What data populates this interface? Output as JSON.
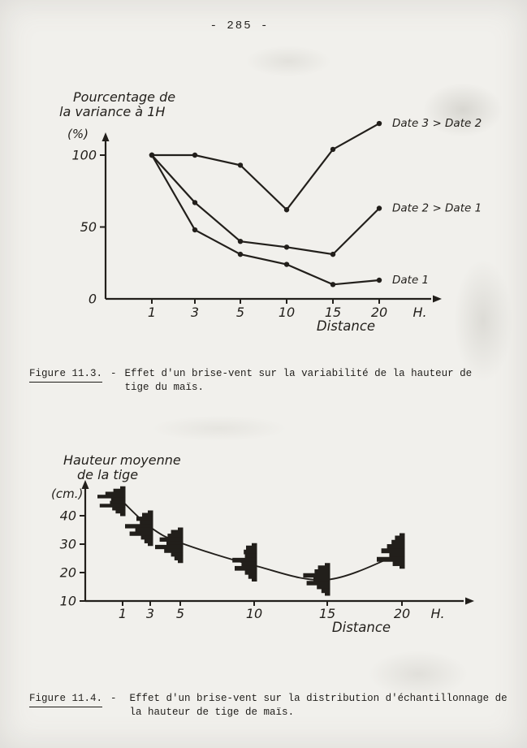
{
  "page": {
    "number_label": "- 285 -",
    "paper_color": "#f1f0ec",
    "ink_color": "#221f1b"
  },
  "figure_11_3": {
    "label": "Figure 11.3.",
    "dash": "-",
    "caption_line1": "Effet d'un brise-vent sur la variabilité de la hauteur de",
    "caption_line2": "tige du maïs."
  },
  "figure_11_4": {
    "label": "Figure 11.4.",
    "dash": "-",
    "caption_line1": "Effet d'un brise-vent sur la distribution d'échantillonnage de",
    "caption_line2": "la hauteur de tige de maïs."
  },
  "chart_data": [
    {
      "id": "variance-chart",
      "type": "line",
      "title_line1": "Pourcentage de",
      "title_line2": "la variance à 1H",
      "unit_label": "(%)",
      "xlabel": "Distance",
      "x_axis_end_label": "H.",
      "categories": [
        1,
        3,
        5,
        10,
        15,
        20
      ],
      "x_spacing": "categorical-equal",
      "yticks": [
        0,
        50,
        100
      ],
      "ylim": [
        0,
        130
      ],
      "grid": false,
      "legend_position": "right-of-last-point",
      "series": [
        {
          "name": "Date 3 > Date 2",
          "values": [
            100,
            100,
            93,
            62,
            104,
            122
          ]
        },
        {
          "name": "Date 2 > Date 1",
          "values": [
            100,
            67,
            40,
            36,
            31,
            63
          ]
        },
        {
          "name": "Date 1",
          "values": [
            100,
            48,
            31,
            24,
            10,
            13
          ]
        }
      ]
    },
    {
      "id": "hauteur-chart",
      "type": "line-with-distributions",
      "title_line1": "Hauteur moyenne",
      "title_line2": "de la tige",
      "unit_label": "(cm.)",
      "xlabel": "Distance",
      "x_axis_end_label": "H.",
      "x": [
        1,
        3,
        5,
        10,
        15,
        20
      ],
      "x_spacing": "linear",
      "yticks": [
        10,
        20,
        30,
        40
      ],
      "ylim": [
        10,
        52
      ],
      "grid": false,
      "curve_means": [
        45,
        36,
        30.5,
        22.5,
        17.5,
        27
      ],
      "distributions": [
        {
          "x": 1,
          "mean": 45,
          "value_range": [
            41,
            49.5
          ],
          "freq": [
            0.3,
            0.65,
            1.0,
            0.4,
            0.45,
            0.9,
            0.35,
            0.2
          ]
        },
        {
          "x": 3,
          "mean": 36,
          "value_range": [
            30.5,
            41
          ],
          "freq": [
            0.25,
            0.5,
            0.35,
            1.0,
            0.55,
            0.8,
            0.3,
            0.15
          ]
        },
        {
          "x": 5,
          "mean": 30.5,
          "value_range": [
            24.5,
            35
          ],
          "freq": [
            0.3,
            0.45,
            0.8,
            0.5,
            1.0,
            0.6,
            0.3,
            0.15
          ]
        },
        {
          "x": 10,
          "mean": 22.5,
          "value_range": [
            18,
            29.5
          ],
          "freq": [
            0.25,
            0.35,
            0.3,
            0.85,
            0.45,
            0.75,
            0.3,
            0.15
          ]
        },
        {
          "x": 15,
          "mean": 17.5,
          "value_range": [
            13,
            22.5
          ],
          "freq": [
            0.3,
            0.45,
            0.95,
            0.5,
            0.8,
            0.35,
            0.15
          ]
        },
        {
          "x": 20,
          "mean": 27,
          "value_range": [
            22.5,
            33
          ],
          "freq": [
            0.2,
            0.35,
            0.55,
            0.8,
            0.45,
            1.0,
            0.3
          ]
        }
      ]
    }
  ]
}
